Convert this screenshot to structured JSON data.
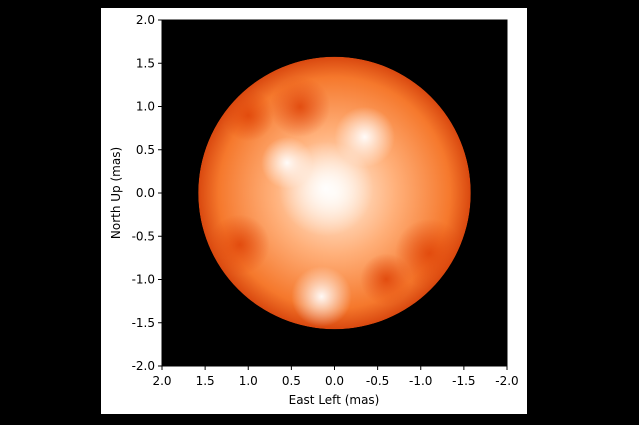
{
  "chart_data": {
    "type": "image",
    "xlabel": "East Left (mas)",
    "ylabel": "North Up (mas)",
    "xlim": [
      2.0,
      -2.0
    ],
    "ylim": [
      -2.0,
      2.0
    ],
    "xticks": [
      {
        "value": 2.0,
        "label": "2.0"
      },
      {
        "value": 1.5,
        "label": "1.5"
      },
      {
        "value": 1.0,
        "label": "1.0"
      },
      {
        "value": 0.5,
        "label": "0.5"
      },
      {
        "value": 0.0,
        "label": "0.0"
      },
      {
        "value": -0.5,
        "label": "-0.5"
      },
      {
        "value": -1.0,
        "label": "-1.0"
      },
      {
        "value": -1.5,
        "label": "-1.5"
      },
      {
        "value": -2.0,
        "label": "-2.0"
      }
    ],
    "yticks": [
      {
        "value": -2.0,
        "label": "-2.0"
      },
      {
        "value": -1.5,
        "label": "-1.5"
      },
      {
        "value": -1.0,
        "label": "-1.0"
      },
      {
        "value": -0.5,
        "label": "-0.5"
      },
      {
        "value": 0.0,
        "label": "0.0"
      },
      {
        "value": 0.5,
        "label": "0.5"
      },
      {
        "value": 1.0,
        "label": "1.0"
      },
      {
        "value": 1.5,
        "label": "1.5"
      },
      {
        "value": 2.0,
        "label": "2.0"
      }
    ],
    "disk_radius": 1.58
  }
}
